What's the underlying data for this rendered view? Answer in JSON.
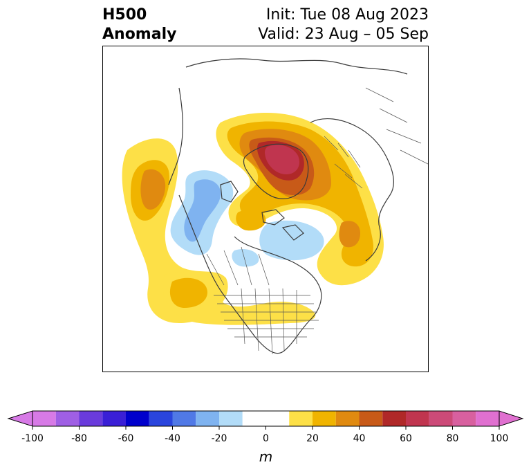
{
  "title": {
    "left_line1": "H500",
    "left_line2": "Anomaly",
    "right_line1": "Init: Tue 08 Aug 2023",
    "right_line2": "Valid: 23 Aug – 05 Sep"
  },
  "colorbar": {
    "unit_label": "m",
    "ticks": [
      "-100",
      "-80",
      "-60",
      "-40",
      "-20",
      "0",
      "20",
      "40",
      "60",
      "80",
      "100"
    ],
    "tick_values": [
      -100,
      -80,
      -60,
      -40,
      -20,
      0,
      20,
      40,
      60,
      80,
      100
    ],
    "bins": [
      {
        "from": -100,
        "to": -90,
        "color": "#d77ae6"
      },
      {
        "from": -90,
        "to": -80,
        "color": "#9f5fe4"
      },
      {
        "from": -80,
        "to": -70,
        "color": "#6a3bdc"
      },
      {
        "from": -70,
        "to": -60,
        "color": "#3a1fd6"
      },
      {
        "from": -60,
        "to": -50,
        "color": "#0000cc"
      },
      {
        "from": -50,
        "to": -40,
        "color": "#2a45dd"
      },
      {
        "from": -40,
        "to": -30,
        "color": "#5079e6"
      },
      {
        "from": -30,
        "to": -20,
        "color": "#7fb3f0"
      },
      {
        "from": -20,
        "to": -10,
        "color": "#b2dcf8"
      },
      {
        "from": -10,
        "to": 10,
        "color": "#ffffff"
      },
      {
        "from": 10,
        "to": 20,
        "color": "#fde047"
      },
      {
        "from": 20,
        "to": 30,
        "color": "#f0b400"
      },
      {
        "from": 30,
        "to": 40,
        "color": "#e08a10"
      },
      {
        "from": 40,
        "to": 50,
        "color": "#c85a18"
      },
      {
        "from": 50,
        "to": 60,
        "color": "#b02828"
      },
      {
        "from": 60,
        "to": 70,
        "color": "#c0354f"
      },
      {
        "from": 70,
        "to": 80,
        "color": "#cc4a78"
      },
      {
        "from": 80,
        "to": 90,
        "color": "#d8609f"
      },
      {
        "from": 90,
        "to": 100,
        "color": "#e070d0"
      }
    ],
    "extend_low_color": "#d77ae6",
    "extend_high_color": "#e070d0"
  },
  "map": {
    "projection": "north-polar-stereographic",
    "coastline_color": "#3a3a3a",
    "border_color": "#555555"
  }
}
